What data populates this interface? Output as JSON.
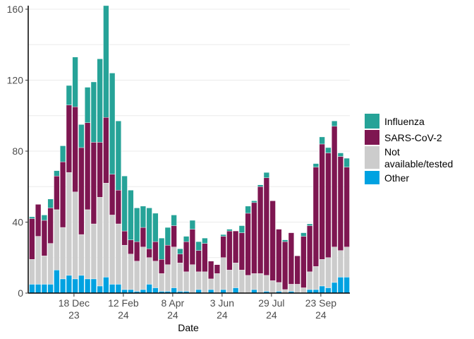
{
  "chart_data": {
    "type": "bar",
    "stacked": true,
    "title": "",
    "xlabel": "Date",
    "ylabel": "",
    "ylim": [
      0,
      160
    ],
    "yticks": [
      0,
      40,
      80,
      120,
      160
    ],
    "grid": true,
    "legend_placement": "right",
    "xticks": [
      {
        "pos": 6.8,
        "line1": "18 Dec",
        "line2": "23"
      },
      {
        "pos": 14.8,
        "line1": "12 Feb",
        "line2": "24"
      },
      {
        "pos": 22.8,
        "line1": "8 Apr",
        "line2": "24"
      },
      {
        "pos": 30.8,
        "line1": "3 Jun",
        "line2": "24"
      },
      {
        "pos": 38.8,
        "line1": "29 Jul",
        "line2": "24"
      },
      {
        "pos": 46.8,
        "line1": "23 Sep",
        "line2": "24"
      }
    ],
    "series": [
      {
        "name": "Other",
        "color": "#00A2E1",
        "values": [
          5,
          5,
          5,
          5,
          13,
          8,
          10,
          8,
          10,
          8,
          8,
          4,
          9,
          5,
          5,
          2,
          2,
          1,
          2,
          5,
          3,
          1,
          1,
          3,
          1,
          1,
          0,
          2,
          0,
          2,
          0,
          2,
          0,
          3,
          0,
          0,
          2,
          0,
          1,
          0,
          1,
          0,
          1,
          0,
          0,
          2,
          2,
          4,
          3,
          6,
          9,
          9
        ]
      },
      {
        "name": "Not available/tested",
        "color": "#CCCCCC",
        "values": [
          14,
          27,
          16,
          23,
          34,
          29,
          58,
          49,
          23,
          39,
          31,
          50,
          53,
          39,
          34,
          25,
          20,
          17,
          24,
          15,
          15,
          10,
          15,
          23,
          16,
          11,
          16,
          10,
          12,
          6,
          11,
          18,
          13,
          14,
          13,
          10,
          9,
          11,
          9,
          7,
          5,
          2,
          4,
          5,
          3,
          10,
          13,
          15,
          17,
          20,
          15,
          17
        ]
      },
      {
        "name": "SARS-CoV-2",
        "color": "#7E1651",
        "values": [
          23,
          18,
          20,
          20,
          19,
          37,
          38,
          48,
          49,
          49,
          46,
          31,
          37,
          23,
          19,
          8,
          8,
          11,
          11,
          5,
          11,
          8,
          11,
          12,
          5,
          17,
          20,
          12,
          16,
          10,
          5,
          12,
          22,
          18,
          21,
          35,
          40,
          49,
          55,
          45,
          30,
          27,
          29,
          16,
          29,
          26,
          56,
          65,
          59,
          68,
          53,
          45
        ]
      },
      {
        "name": "Influenza",
        "color": "#26A398",
        "values": [
          1,
          0,
          3,
          5,
          3,
          9,
          11,
          28,
          13,
          20,
          34,
          47,
          63,
          57,
          39,
          31,
          28,
          19,
          12,
          23,
          16,
          12,
          10,
          6,
          3,
          3,
          5,
          5,
          3,
          0,
          0,
          1,
          1,
          0,
          4,
          4,
          1,
          1,
          3,
          0,
          0,
          1,
          0,
          0,
          2,
          1,
          2,
          4,
          3,
          3,
          2,
          5
        ]
      }
    ],
    "legend": [
      {
        "name": "Influenza",
        "line1": "Influenza",
        "line2": ""
      },
      {
        "name": "SARS-CoV-2",
        "line1": "SARS-CoV-2",
        "line2": ""
      },
      {
        "name": "Not available/tested",
        "line1": "Not",
        "line2": "available/tested"
      },
      {
        "name": "Other",
        "line1": "Other",
        "line2": ""
      }
    ]
  }
}
